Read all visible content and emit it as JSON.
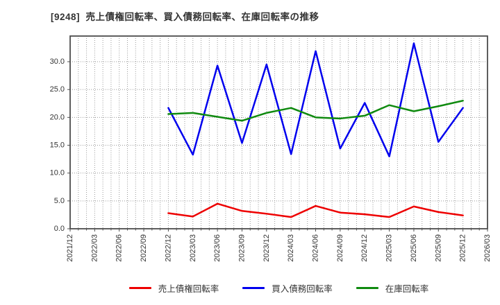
{
  "title": "[9248]  売上債権回転率、買入債務回転率、在庫回転率の推移",
  "colors": {
    "background": "#ffffff",
    "spine": "#4d4d4d",
    "gridline": "#999999",
    "tick_label": "#333333",
    "title_text": "#333333"
  },
  "chart_data": {
    "type": "line",
    "title": "[9248]  売上債権回転率、買入債務回転率、在庫回転率の推移",
    "x_tick_labels": [
      "2021/12",
      "2022/03",
      "2022/06",
      "2022/09",
      "2022/12",
      "2023/03",
      "2023/06",
      "2023/09",
      "2023/12",
      "2024/03",
      "2024/06",
      "2024/09",
      "2024/12",
      "2025/03",
      "2025/06",
      "2025/09",
      "2025/12",
      "2026/03"
    ],
    "categories": [
      "2022/12",
      "2023/03",
      "2023/06",
      "2023/09",
      "2023/12",
      "2024/03",
      "2024/06",
      "2024/09",
      "2024/12",
      "2025/03",
      "2025/06",
      "2025/09",
      "2025/12"
    ],
    "series": [
      {
        "name": "売上債権回転率",
        "color": "#ee0000",
        "values": [
          2.8,
          2.2,
          4.5,
          3.2,
          2.7,
          2.1,
          4.1,
          2.9,
          2.6,
          2.1,
          4.0,
          3.0,
          2.4
        ]
      },
      {
        "name": "買入債務回転率",
        "color": "#0000ee",
        "values": [
          21.7,
          13.3,
          29.3,
          15.4,
          29.5,
          13.4,
          31.9,
          14.4,
          22.6,
          13.0,
          33.3,
          15.6,
          21.7
        ]
      },
      {
        "name": "在庫回転率",
        "color": "#0f8a0f",
        "values": [
          20.6,
          20.8,
          20.1,
          19.4,
          20.8,
          21.7,
          20.0,
          19.8,
          20.3,
          22.2,
          21.1,
          22.0,
          23.0
        ]
      }
    ],
    "yticks": [
      0.0,
      5.0,
      10.0,
      15.0,
      20.0,
      25.0,
      30.0
    ],
    "ylim": [
      0,
      34.6
    ],
    "grid": true,
    "grid_style": "dotted",
    "legend_position": "bottom"
  }
}
